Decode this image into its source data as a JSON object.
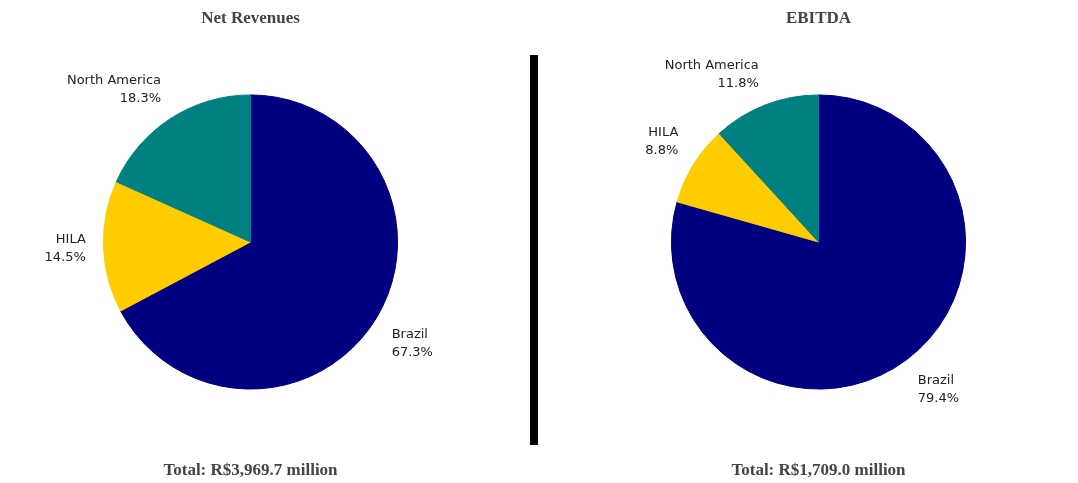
{
  "chart_data": [
    {
      "type": "pie",
      "title": "Net Revenues",
      "categories": [
        "Brazil",
        "HILA",
        "North America"
      ],
      "values": [
        67.3,
        14.5,
        18.3
      ],
      "value_labels": [
        "67.3%",
        "14.5%",
        "18.3%"
      ],
      "colors": [
        "#000080",
        "#ffcc00",
        "#008080"
      ],
      "annotations": [
        "Total: R$3,969.7 million"
      ]
    },
    {
      "type": "pie",
      "title": "EBITDA",
      "categories": [
        "Brazil",
        "HILA",
        "North America"
      ],
      "values": [
        79.4,
        8.8,
        11.8
      ],
      "value_labels": [
        "79.4%",
        "8.8%",
        "11.8%"
      ],
      "colors": [
        "#000080",
        "#ffcc00",
        "#008080"
      ],
      "annotations": [
        "Total: R$1,709.0 million"
      ]
    }
  ]
}
